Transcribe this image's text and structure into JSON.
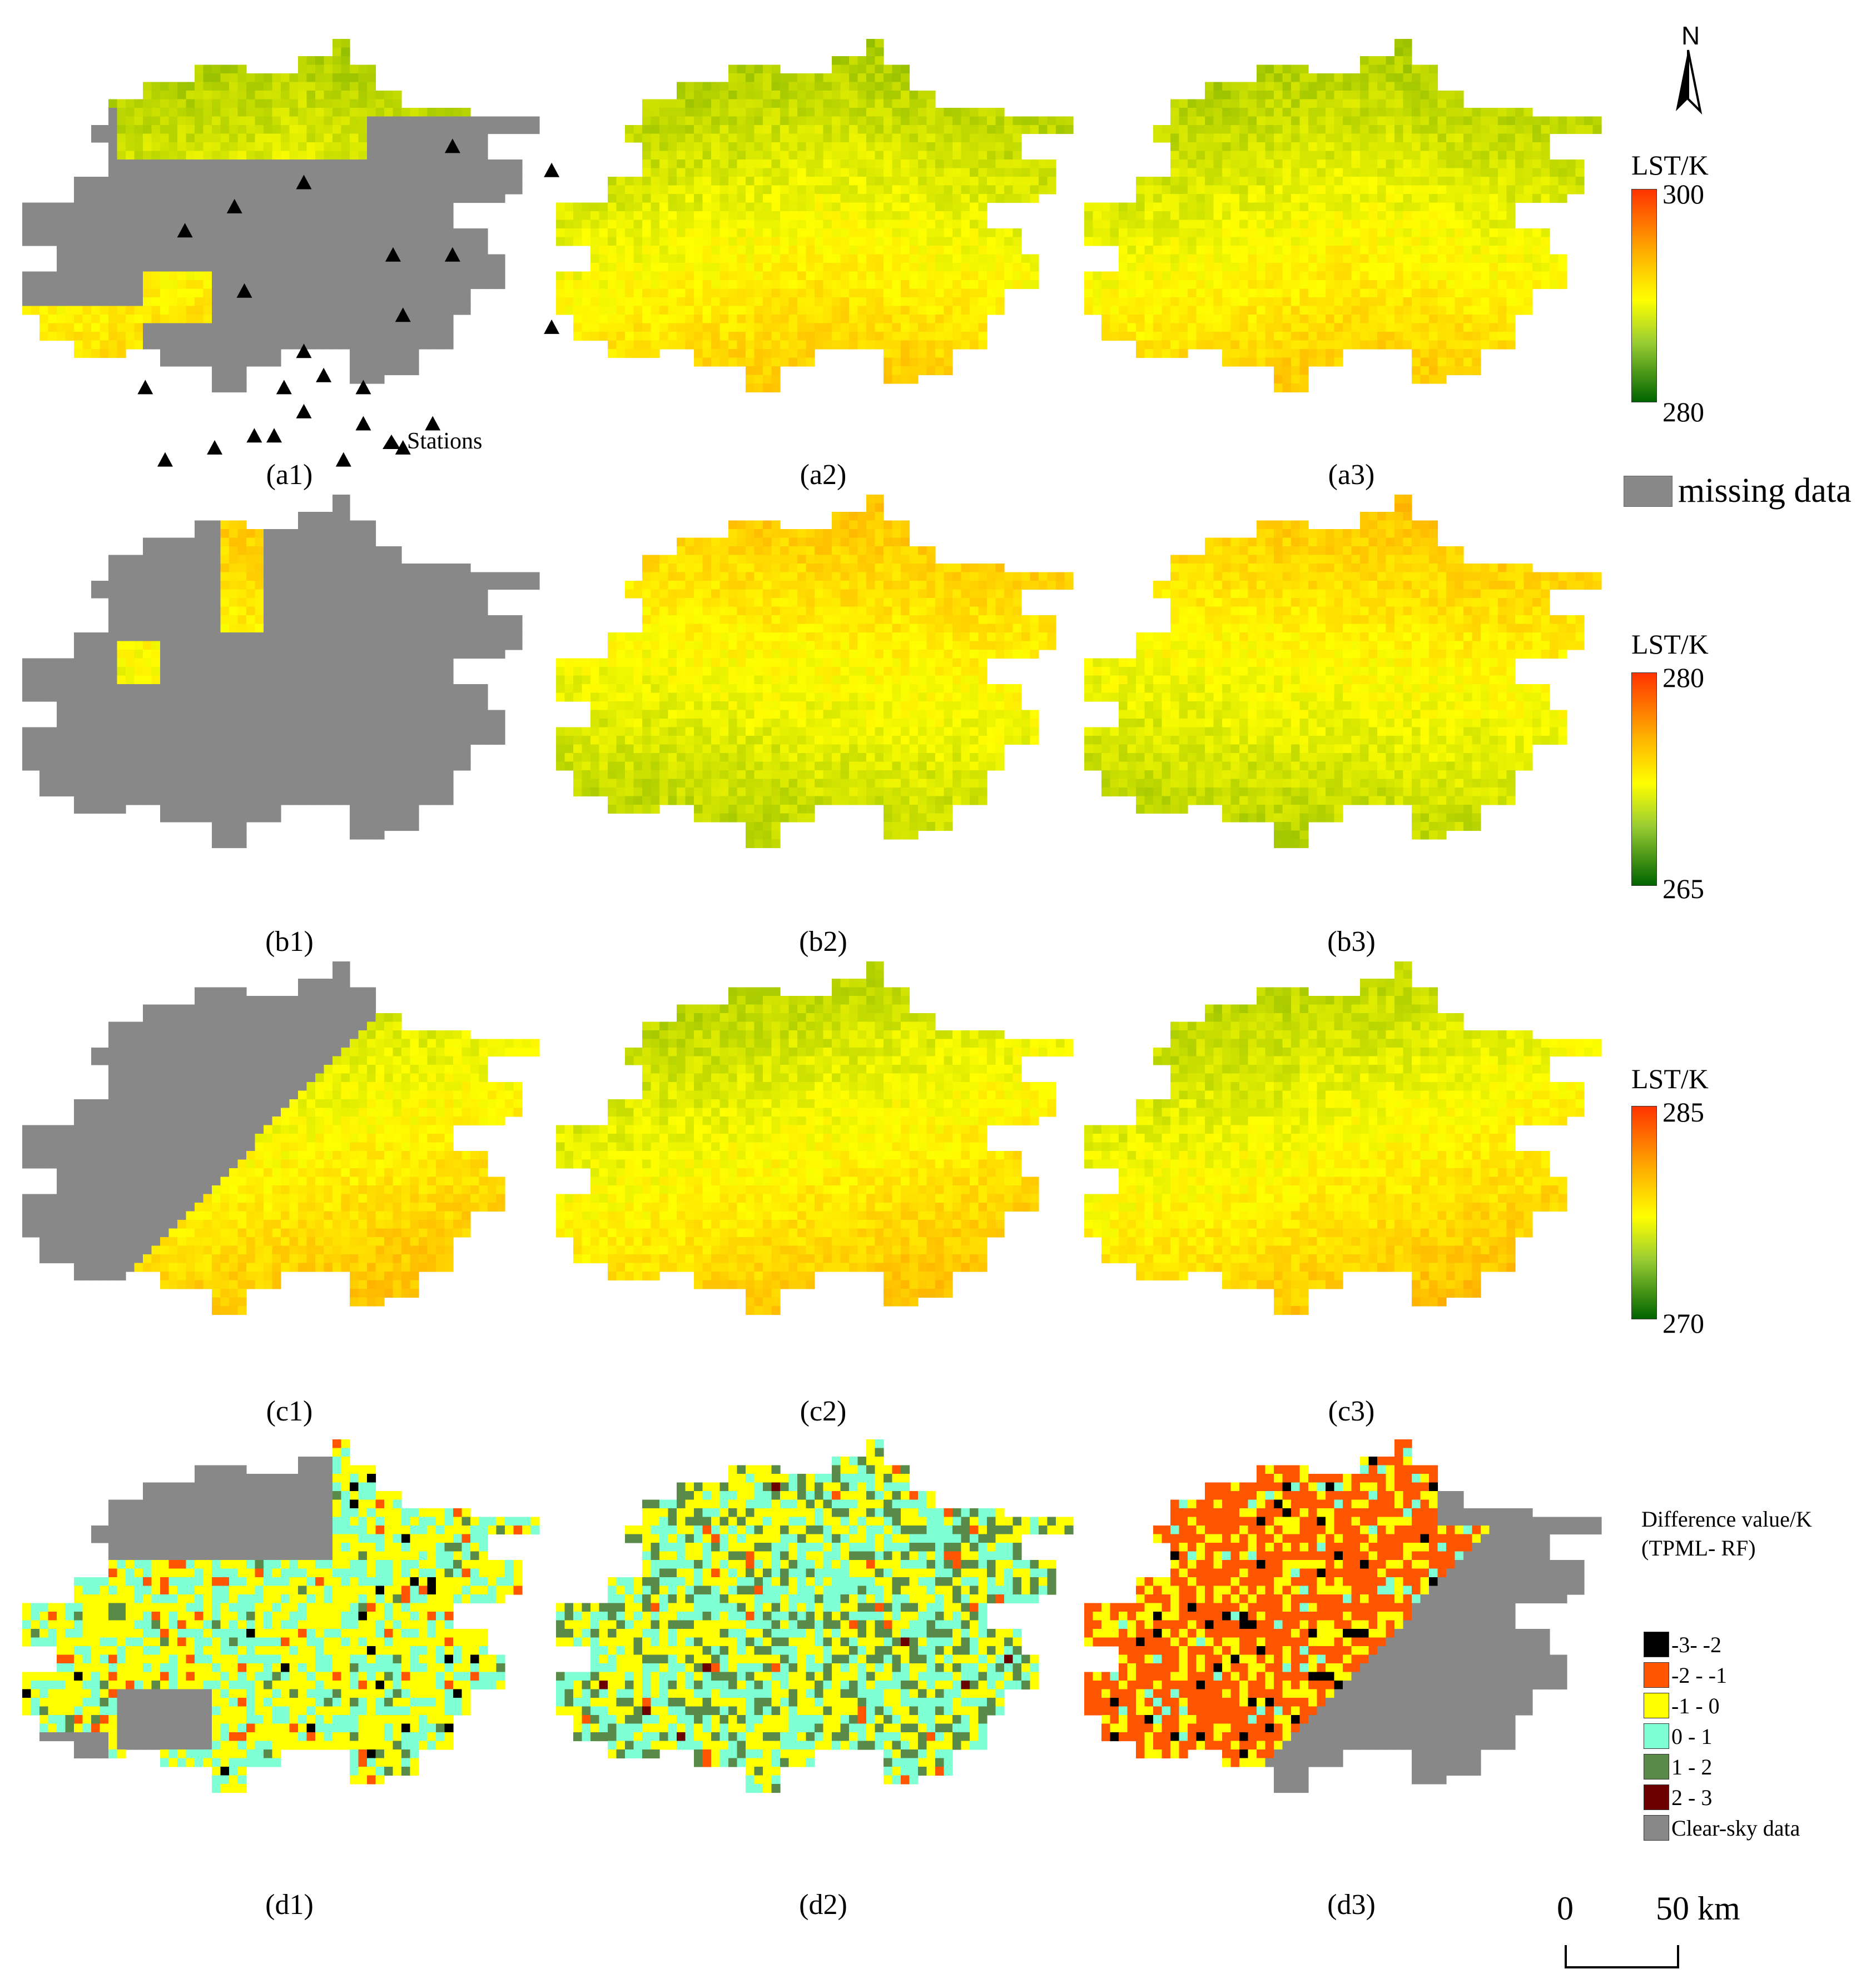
{
  "panels": [
    {
      "id": "a1",
      "label": "(a1)",
      "kind": "lst_missing",
      "ramp": "a",
      "shape": "s1",
      "seed": 11,
      "mask": "a_missing"
    },
    {
      "id": "a2",
      "label": "(a2)",
      "kind": "lst",
      "ramp": "a",
      "shape": "s1",
      "seed": 12
    },
    {
      "id": "a3",
      "label": "(a3)",
      "kind": "lst",
      "ramp": "a",
      "shape": "s1",
      "seed": 13
    },
    {
      "id": "b1",
      "label": "(b1)",
      "kind": "lst_missing",
      "ramp": "b",
      "shape": "s1",
      "seed": 21,
      "mask": "b_missing"
    },
    {
      "id": "b2",
      "label": "(b2)",
      "kind": "lst",
      "ramp": "b",
      "shape": "s1",
      "seed": 22
    },
    {
      "id": "b3",
      "label": "(b3)",
      "kind": "lst",
      "ramp": "b",
      "shape": "s1",
      "seed": 23
    },
    {
      "id": "c1",
      "label": "(c1)",
      "kind": "lst_missing",
      "ramp": "c",
      "shape": "s1",
      "seed": 31,
      "mask": "c_missing"
    },
    {
      "id": "c2",
      "label": "(c2)",
      "kind": "lst",
      "ramp": "c",
      "shape": "s1",
      "seed": 32
    },
    {
      "id": "c3",
      "label": "(c3)",
      "kind": "lst",
      "ramp": "c",
      "shape": "s1",
      "seed": 33
    },
    {
      "id": "d1",
      "label": "(d1)",
      "kind": "diff",
      "shape": "s1",
      "seed": 41,
      "mask": "d1_clear"
    },
    {
      "id": "d2",
      "label": "(d2)",
      "kind": "diff",
      "shape": "s1",
      "seed": 42,
      "mask": "d2_clear"
    },
    {
      "id": "d3",
      "label": "(d3)",
      "kind": "diff",
      "shape": "s1",
      "seed": 43,
      "mask": "d3_clear"
    }
  ],
  "north_label": "N",
  "legends": {
    "a": {
      "title": "LST/K",
      "max": "300",
      "min": "280"
    },
    "b": {
      "title": "LST/K",
      "max": "280",
      "min": "265"
    },
    "c": {
      "title": "LST/K",
      "max": "285",
      "min": "270"
    }
  },
  "missing_label": "missing data",
  "stations_label": "Stations",
  "diff_legend": {
    "title_line1": "Difference value/K",
    "title_line2": "(TPML- RF)",
    "classes": [
      {
        "label": "-3- -2",
        "color": "#000000"
      },
      {
        "label": "-2 - -1",
        "color": "#ff5500"
      },
      {
        "label": "-1 - 0",
        "color": "#ffff00"
      },
      {
        "label": "0 - 1",
        "color": "#7fffd4"
      },
      {
        "label": "1 - 2",
        "color": "#5a8a4a"
      },
      {
        "label": "2 - 3",
        "color": "#6b0000"
      },
      {
        "label": "Clear-sky data",
        "color": "#888888"
      }
    ]
  },
  "scale_bar": {
    "left_label": "0",
    "right_label": "50 km"
  },
  "colors": {
    "missing": "#888888",
    "ramp_low": "#006400",
    "ramp_mid": "#ffff00",
    "ramp_high": "#ff3300"
  }
}
